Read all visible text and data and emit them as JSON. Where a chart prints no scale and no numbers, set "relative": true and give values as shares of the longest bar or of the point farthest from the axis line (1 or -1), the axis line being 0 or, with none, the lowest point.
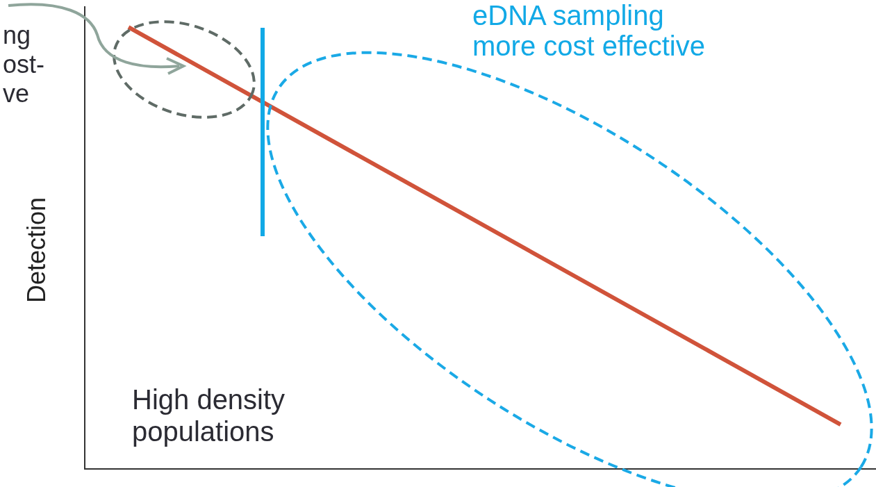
{
  "chart_data": {
    "type": "line",
    "relative": true,
    "ylabel": "Detection",
    "categories": [
      null,
      null
    ],
    "series": [
      {
        "color": "#d0533a",
        "values": [
          1,
          0.1
        ]
      }
    ],
    "annotations": [
      "ng\nost-\nve",
      "eDNA sampling\nmore cost effective",
      "High density\npopulations"
    ],
    "legend": false,
    "grid": false,
    "marker": "none",
    "line_style": "solid"
  }
}
